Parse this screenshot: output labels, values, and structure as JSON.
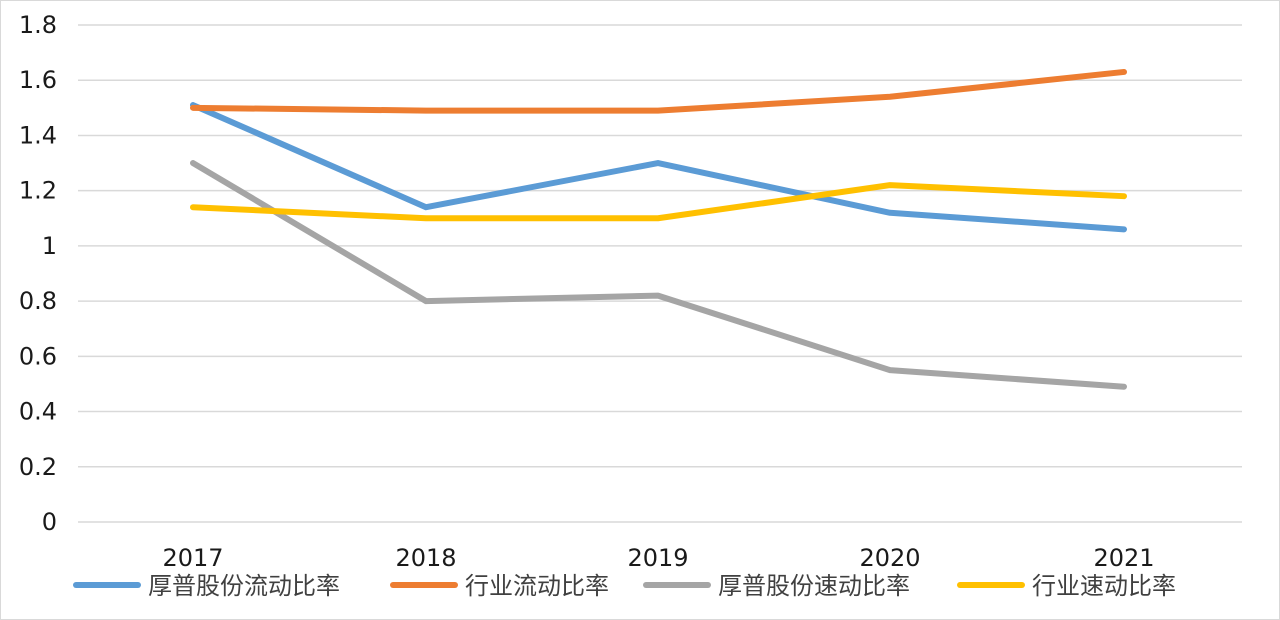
{
  "chart_data": {
    "type": "line",
    "title": "",
    "xlabel": "",
    "ylabel": "",
    "categories": [
      "2017",
      "2018",
      "2019",
      "2020",
      "2021"
    ],
    "ylim": [
      0,
      1.8
    ],
    "yticks": [
      "0",
      "0.2",
      "0.4",
      "0.6",
      "0.8",
      "1",
      "1.2",
      "1.4",
      "1.6",
      "1.8"
    ],
    "grid": true,
    "legend_position": "bottom",
    "series": [
      {
        "name": "厚普股份流动比率",
        "color": "#5B9BD5",
        "values": [
          1.51,
          1.14,
          1.3,
          1.12,
          1.06
        ]
      },
      {
        "name": "行业流动比率",
        "color": "#ED7D31",
        "values": [
          1.5,
          1.49,
          1.49,
          1.54,
          1.63
        ]
      },
      {
        "name": "厚普股份速动比率",
        "color": "#A5A5A5",
        "values": [
          1.3,
          0.8,
          0.82,
          0.55,
          0.49
        ]
      },
      {
        "name": "行业速动比率",
        "color": "#FFC000",
        "values": [
          1.14,
          1.1,
          1.1,
          1.22,
          1.18
        ]
      }
    ]
  }
}
